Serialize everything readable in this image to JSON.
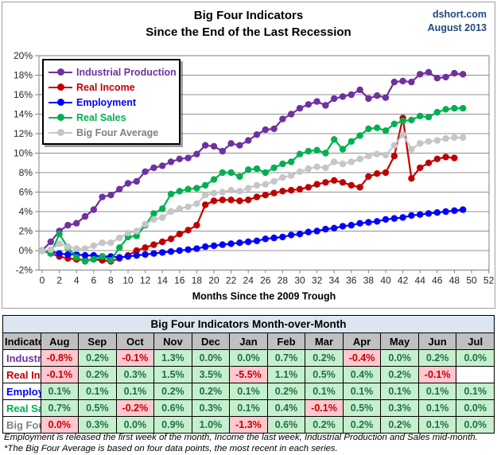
{
  "header": {
    "title_line1": "Big Four Indicators",
    "title_line2": "Since the End of the Last Recession",
    "source": "dshort.com",
    "date": "August 2013"
  },
  "chart_data": {
    "type": "line",
    "title": "Big Four Indicators Since the End of the Last Recession",
    "xlabel": "Months Since the 2009 Trough",
    "xlim": [
      0,
      52
    ],
    "xtick_step": 2,
    "ylim": [
      -2,
      20
    ],
    "ytick_step": 2,
    "ytick_suffix": "%",
    "grid": true,
    "legend_position": "top-left",
    "x_unit": "months since June 2009 trough",
    "series": [
      {
        "name": "Industrial Production",
        "color": "#7030A0",
        "label_color": "#7030A0",
        "values": [
          0.0,
          0.9,
          2.0,
          2.6,
          2.8,
          3.5,
          4.2,
          5.5,
          5.7,
          6.3,
          6.9,
          7.1,
          8.1,
          8.5,
          8.7,
          9.1,
          9.4,
          9.5,
          9.9,
          10.8,
          10.7,
          10.2,
          11.0,
          10.8,
          11.3,
          11.9,
          12.4,
          12.5,
          13.5,
          14.0,
          14.6,
          15.0,
          15.3,
          14.9,
          15.6,
          15.8,
          16.0,
          16.5,
          15.6,
          15.9,
          15.7,
          17.3,
          17.4,
          17.3,
          18.1,
          18.3,
          17.7,
          17.8,
          18.2,
          18.1
        ]
      },
      {
        "name": "Real Income",
        "color": "#C00000",
        "label_color": "#C00000",
        "values": [
          0.0,
          -0.3,
          -0.6,
          -0.8,
          -0.9,
          -1.0,
          -0.9,
          -1.0,
          -1.1,
          -0.8,
          -0.5,
          0.0,
          0.3,
          0.6,
          0.9,
          1.2,
          1.7,
          2.1,
          2.6,
          4.7,
          5.1,
          5.2,
          5.2,
          5.1,
          5.2,
          5.5,
          5.7,
          5.9,
          6.1,
          6.2,
          6.3,
          6.5,
          6.8,
          7.0,
          7.2,
          7.0,
          6.7,
          6.5,
          7.6,
          7.9,
          8.0,
          9.7,
          13.6,
          7.4,
          8.5,
          9.0,
          9.4,
          9.6,
          9.5
        ]
      },
      {
        "name": "Employment",
        "color": "#0000FF",
        "label_color": "#0000FF",
        "values": [
          0.0,
          -0.1,
          -0.3,
          -0.4,
          -0.4,
          -0.5,
          -0.5,
          -0.6,
          -0.6,
          -0.7,
          -0.6,
          -0.5,
          -0.4,
          -0.3,
          -0.2,
          -0.1,
          0.0,
          0.1,
          0.2,
          0.4,
          0.5,
          0.6,
          0.7,
          0.8,
          0.9,
          1.0,
          1.2,
          1.3,
          1.4,
          1.6,
          1.7,
          1.9,
          2.0,
          2.2,
          2.3,
          2.5,
          2.6,
          2.8,
          2.9,
          3.0,
          3.2,
          3.3,
          3.4,
          3.6,
          3.7,
          3.8,
          3.9,
          4.0,
          4.1,
          4.2
        ]
      },
      {
        "name": "Real Sales",
        "color": "#00B050",
        "label_color": "#00B050",
        "values": [
          0.0,
          -0.3,
          1.7,
          0.3,
          -0.7,
          -1.1,
          -0.9,
          -0.6,
          -1.0,
          0.3,
          1.4,
          1.5,
          2.6,
          3.8,
          4.3,
          5.8,
          6.1,
          6.3,
          6.4,
          6.7,
          7.3,
          8.0,
          8.0,
          7.6,
          8.3,
          8.4,
          8.0,
          8.5,
          8.9,
          9.1,
          9.9,
          10.2,
          10.3,
          10.0,
          11.4,
          10.4,
          11.2,
          11.8,
          12.5,
          12.6,
          12.3,
          13.0,
          13.3,
          13.4,
          13.8,
          13.7,
          14.2,
          14.5,
          14.6,
          14.6
        ]
      },
      {
        "name": "Big Four Average",
        "color": "#C6C6C6",
        "label_color": "#808080",
        "values": [
          0.0,
          0.1,
          0.7,
          0.4,
          0.2,
          0.2,
          0.5,
          0.8,
          0.8,
          1.3,
          1.8,
          2.0,
          2.7,
          3.2,
          3.4,
          4.0,
          4.3,
          4.5,
          4.8,
          5.7,
          5.9,
          6.0,
          6.2,
          6.1,
          6.4,
          6.7,
          6.8,
          7.1,
          7.5,
          7.7,
          8.1,
          8.4,
          8.6,
          8.5,
          9.1,
          8.9,
          9.1,
          9.4,
          9.7,
          9.9,
          9.8,
          10.8,
          11.9,
          10.4,
          11.0,
          11.2,
          11.3,
          11.5,
          11.6,
          11.6
        ]
      }
    ]
  },
  "table": {
    "title": "Big Four Indicators Month-over-Month",
    "indicator_header": "Indicator",
    "months": [
      "Aug",
      "Sep",
      "Oct",
      "Nov",
      "Dec",
      "Jan",
      "Feb",
      "Mar",
      "Apr",
      "May",
      "Jun",
      "Jul"
    ],
    "rows": [
      {
        "name": "Industrial Production",
        "name_color": "#7030A0",
        "cells": [
          {
            "v": "-0.8%",
            "s": "neg"
          },
          {
            "v": "0.2%",
            "s": "pos"
          },
          {
            "v": "-0.1%",
            "s": "neg"
          },
          {
            "v": "1.3%",
            "s": "pos"
          },
          {
            "v": "0.0%",
            "s": "pos"
          },
          {
            "v": "0.0%",
            "s": "pos"
          },
          {
            "v": "0.7%",
            "s": "pos"
          },
          {
            "v": "0.2%",
            "s": "pos"
          },
          {
            "v": "-0.4%",
            "s": "neg"
          },
          {
            "v": "0.0%",
            "s": "pos"
          },
          {
            "v": "0.2%",
            "s": "pos"
          },
          {
            "v": "0.0%",
            "s": "pos"
          }
        ]
      },
      {
        "name": "Real Income",
        "name_color": "#C00000",
        "cells": [
          {
            "v": "-0.1%",
            "s": "neg"
          },
          {
            "v": "0.2%",
            "s": "pos"
          },
          {
            "v": "0.3%",
            "s": "pos"
          },
          {
            "v": "1.5%",
            "s": "pos"
          },
          {
            "v": "3.5%",
            "s": "pos"
          },
          {
            "v": "-5.5%",
            "s": "neg"
          },
          {
            "v": "1.1%",
            "s": "pos"
          },
          {
            "v": "0.5%",
            "s": "pos"
          },
          {
            "v": "0.4%",
            "s": "pos"
          },
          {
            "v": "0.2%",
            "s": "pos"
          },
          {
            "v": "-0.1%",
            "s": "neg"
          },
          {
            "v": "",
            "s": "blank"
          }
        ]
      },
      {
        "name": "Employment",
        "name_color": "#0000FF",
        "cells": [
          {
            "v": "0.1%",
            "s": "pos"
          },
          {
            "v": "0.1%",
            "s": "pos"
          },
          {
            "v": "0.1%",
            "s": "pos"
          },
          {
            "v": "0.2%",
            "s": "pos"
          },
          {
            "v": "0.2%",
            "s": "pos"
          },
          {
            "v": "0.1%",
            "s": "pos"
          },
          {
            "v": "0.2%",
            "s": "pos"
          },
          {
            "v": "0.1%",
            "s": "pos"
          },
          {
            "v": "0.1%",
            "s": "pos"
          },
          {
            "v": "0.1%",
            "s": "pos"
          },
          {
            "v": "0.1%",
            "s": "pos"
          },
          {
            "v": "0.1%",
            "s": "pos"
          }
        ]
      },
      {
        "name": "Real Sales",
        "name_color": "#00B050",
        "cells": [
          {
            "v": "0.7%",
            "s": "pos"
          },
          {
            "v": "0.5%",
            "s": "pos"
          },
          {
            "v": "-0.2%",
            "s": "neg"
          },
          {
            "v": "0.6%",
            "s": "pos"
          },
          {
            "v": "0.3%",
            "s": "pos"
          },
          {
            "v": "0.1%",
            "s": "pos"
          },
          {
            "v": "0.4%",
            "s": "pos"
          },
          {
            "v": "-0.1%",
            "s": "neg"
          },
          {
            "v": "0.5%",
            "s": "pos"
          },
          {
            "v": "0.3%",
            "s": "pos"
          },
          {
            "v": "0.1%",
            "s": "pos"
          },
          {
            "v": "0.0%",
            "s": "pos"
          }
        ]
      },
      {
        "name": "Big Four Average*",
        "name_color": "#808080",
        "cells": [
          {
            "v": "0.0%",
            "s": "neg"
          },
          {
            "v": "0.3%",
            "s": "pos"
          },
          {
            "v": "0.0%",
            "s": "pos"
          },
          {
            "v": "0.9%",
            "s": "pos"
          },
          {
            "v": "1.0%",
            "s": "pos"
          },
          {
            "v": "-1.3%",
            "s": "neg"
          },
          {
            "v": "0.6%",
            "s": "pos"
          },
          {
            "v": "0.2%",
            "s": "pos"
          },
          {
            "v": "0.2%",
            "s": "pos"
          },
          {
            "v": "0.2%",
            "s": "pos"
          },
          {
            "v": "0.1%",
            "s": "pos"
          },
          {
            "v": "0.0%",
            "s": "pos"
          }
        ]
      }
    ]
  },
  "footnotes": [
    "Employment is released the first week of the month, Income the last week, Industrial Production and Sales mid-month.",
    "*The Big Four Average is based on four data points, the most recent in each series.",
    ""
  ]
}
